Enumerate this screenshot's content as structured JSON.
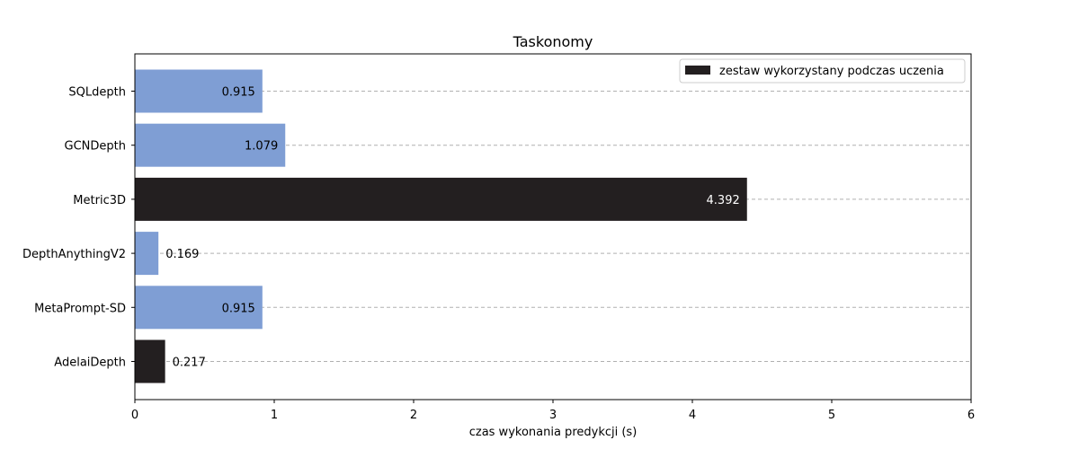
{
  "chart_data": {
    "type": "bar",
    "orientation": "horizontal",
    "title": "Taskonomy",
    "xlabel": "czas wykonania predykcji (s)",
    "ylabel": "",
    "xlim": [
      0,
      6
    ],
    "xticks": [
      0,
      1,
      2,
      3,
      4,
      5,
      6
    ],
    "grid": "horizontal-dashed",
    "legend_position": "top-right",
    "categories": [
      "SQLdepth",
      "GCNDepth",
      "Metric3D",
      "DepthAnythingV2",
      "MetaPrompt-SD",
      "AdelaiDepth"
    ],
    "values": [
      0.915,
      1.079,
      4.392,
      0.169,
      0.915,
      0.217
    ],
    "value_labels": [
      "0.915",
      "1.079",
      "4.392",
      "0.169",
      "0.915",
      "0.217"
    ],
    "used_in_training": [
      false,
      false,
      true,
      false,
      false,
      true
    ],
    "legend": [
      {
        "label": "zestaw wykorzystany podczas uczenia",
        "color": "#231f20"
      }
    ],
    "colors": {
      "default_bar": "#7f9ed4",
      "training_bar": "#231f20",
      "grid": "#b0b0b0"
    }
  }
}
